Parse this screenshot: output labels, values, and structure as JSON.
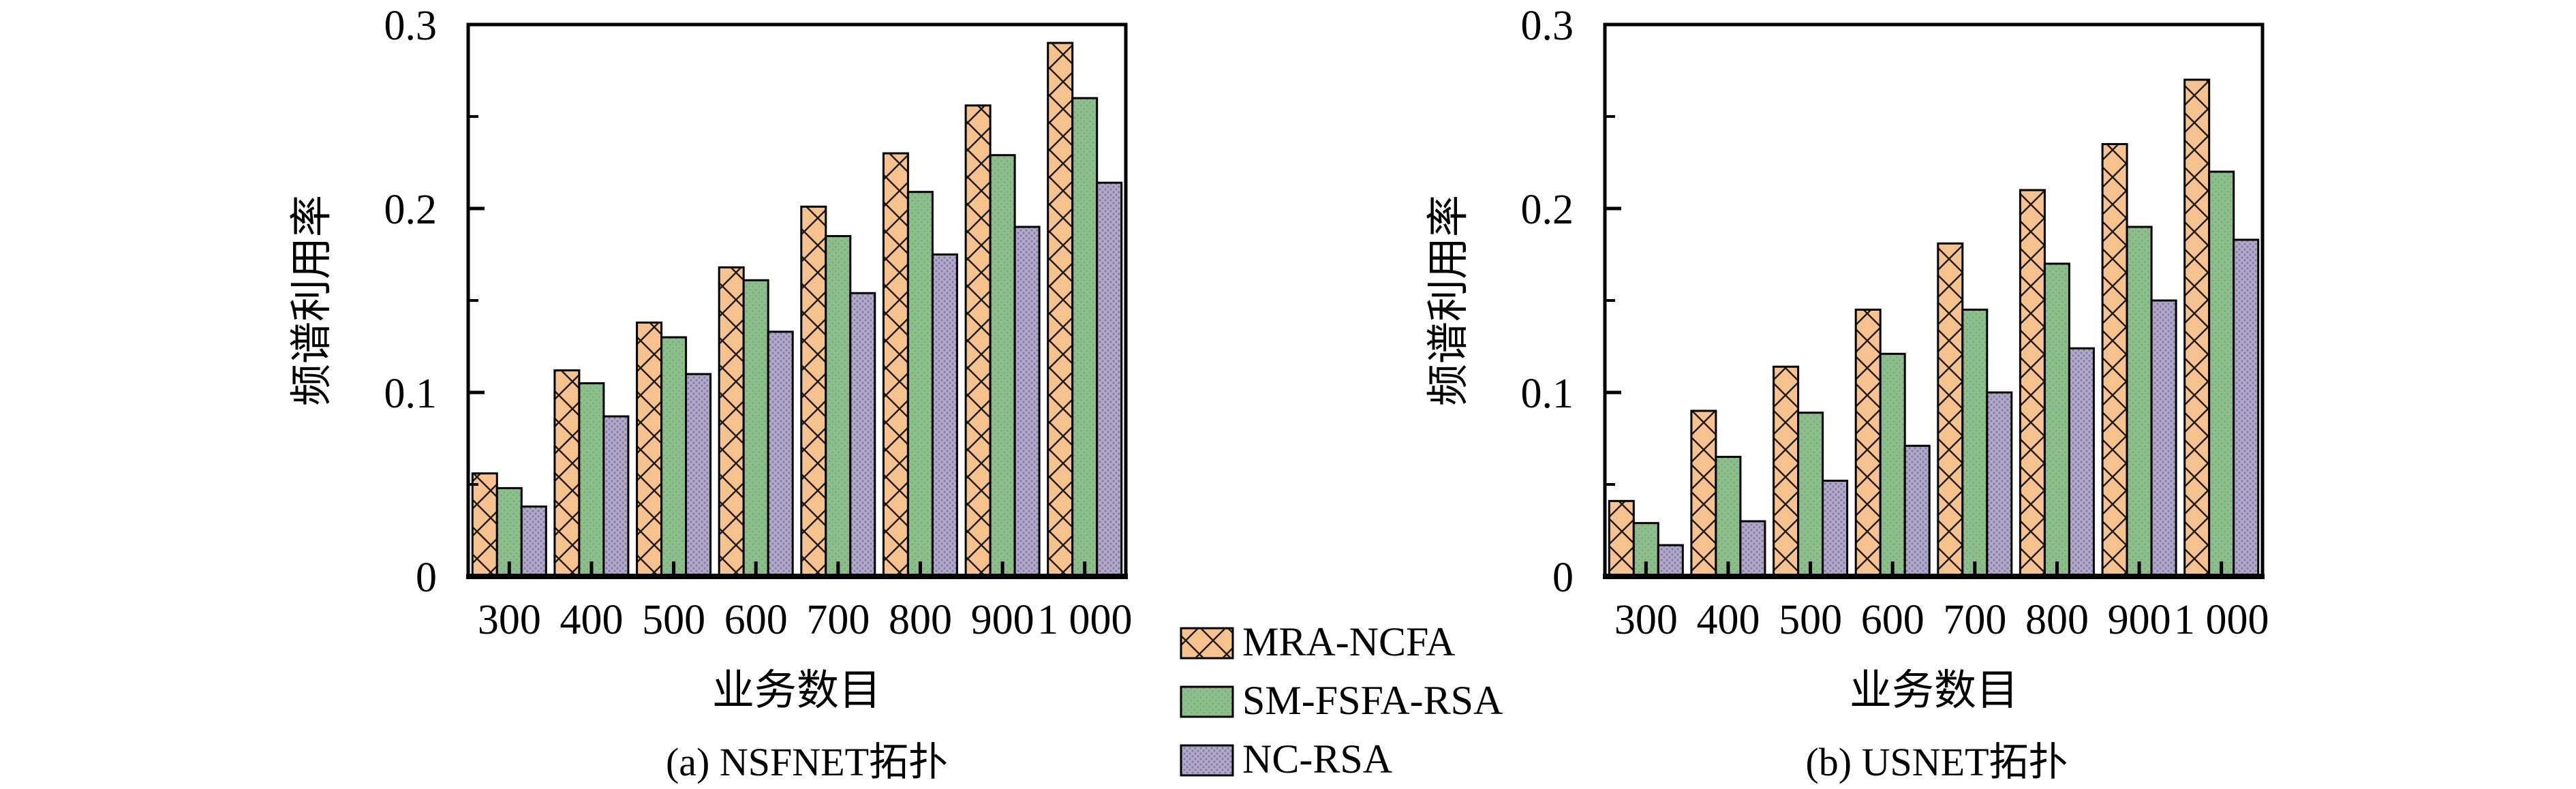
{
  "figure": {
    "background": "#ffffff",
    "axis_color": "#000000",
    "text_color": "#000000"
  },
  "legend": {
    "position": "bottom-center",
    "items": [
      {
        "label": "MRA-NCFA",
        "pattern": "diagonal-crosshatch",
        "fill": "#F6C28E",
        "hatch": "#1c1c1c"
      },
      {
        "label": "SM-FSFA-RSA",
        "pattern": "fine-dots",
        "fill": "#8CBE8C",
        "hatch": "#6FA46F"
      },
      {
        "label": "NC-RSA",
        "pattern": "dense-dots",
        "fill": "#B2A9CA",
        "hatch": "#857BA6"
      }
    ]
  },
  "chart_data": [
    {
      "type": "bar",
      "panel": "a",
      "caption": "(a) NSFNET拓扑",
      "xlabel": "业务数目",
      "ylabel": "频谱利用率",
      "categories": [
        "300",
        "400",
        "500",
        "600",
        "700",
        "800",
        "900",
        "1 000"
      ],
      "ylim": [
        0,
        0.3
      ],
      "yticks": [
        0,
        0.1,
        0.2,
        0.3
      ],
      "ytick_labels": [
        "0",
        "0.1",
        "0.2",
        "0.3"
      ],
      "minor_yticks": [
        0.05,
        0.15,
        0.25
      ],
      "grid": false,
      "legend_entries": [
        "MRA-NCFA",
        "SM-FSFA-RSA",
        "NC-RSA"
      ],
      "series": [
        {
          "name": "MRA-NCFA",
          "values": [
            0.056,
            0.112,
            0.138,
            0.168,
            0.201,
            0.23,
            0.256,
            0.29
          ]
        },
        {
          "name": "SM-FSFA-RSA",
          "values": [
            0.048,
            0.105,
            0.13,
            0.161,
            0.185,
            0.209,
            0.229,
            0.26
          ]
        },
        {
          "name": "NC-RSA",
          "values": [
            0.038,
            0.087,
            0.11,
            0.133,
            0.154,
            0.175,
            0.19,
            0.214
          ]
        }
      ]
    },
    {
      "type": "bar",
      "panel": "b",
      "caption": "(b) USNET拓扑",
      "xlabel": "业务数目",
      "ylabel": "频谱利用率",
      "categories": [
        "300",
        "400",
        "500",
        "600",
        "700",
        "800",
        "900",
        "1 000"
      ],
      "ylim": [
        0,
        0.3
      ],
      "yticks": [
        0,
        0.1,
        0.2,
        0.3
      ],
      "ytick_labels": [
        "0",
        "0.1",
        "0.2",
        "0.3"
      ],
      "minor_yticks": [
        0.05,
        0.15,
        0.25
      ],
      "grid": false,
      "legend_entries": [
        "MRA-NCFA",
        "SM-FSFA-RSA",
        "NC-RSA"
      ],
      "series": [
        {
          "name": "MRA-NCFA",
          "values": [
            0.041,
            0.09,
            0.114,
            0.145,
            0.181,
            0.21,
            0.235,
            0.27
          ]
        },
        {
          "name": "SM-FSFA-RSA",
          "values": [
            0.029,
            0.065,
            0.089,
            0.121,
            0.145,
            0.17,
            0.19,
            0.22
          ]
        },
        {
          "name": "NC-RSA",
          "values": [
            0.017,
            0.03,
            0.052,
            0.071,
            0.1,
            0.124,
            0.15,
            0.183
          ]
        }
      ]
    }
  ]
}
